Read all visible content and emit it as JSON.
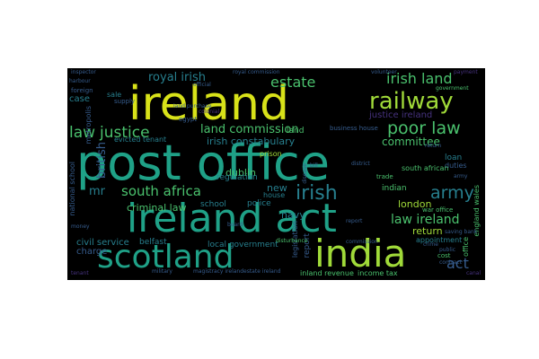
{
  "cloud": {
    "background": "#000000",
    "palette": {
      "yellow": "#d8e219",
      "lime": "#a0da39",
      "green": "#4ac16d",
      "teal": "#1fa187",
      "cyan": "#277f8e",
      "blue": "#365c8d",
      "indigo": "#46327e",
      "purple": "#440154"
    },
    "words": [
      "post office",
      "ireland act",
      "ireland",
      "scotland",
      "india",
      "railway",
      "irish",
      "army",
      "justice",
      "poor law",
      "law",
      "irish land",
      "royal irish",
      "estate",
      "south africa",
      "law ireland",
      "land commission",
      "act",
      "committee",
      "dublin",
      "mr",
      "british",
      "irish constabulary",
      "criminal law",
      "civil service",
      "navy",
      "return",
      "london",
      "indian",
      "new",
      "justice ireland",
      "local government",
      "regulation",
      "business house",
      "evicted tenant",
      "charge",
      "belfast",
      "case",
      "metropolis",
      "school",
      "police",
      "loan",
      "duties",
      "appointment",
      "report",
      "legislation",
      "inland revenue",
      "income tax",
      "magistracy ireland",
      "estate ireland",
      "military",
      "prison",
      "house",
      "south african",
      "national school",
      "england wales",
      "war office",
      "cost",
      "sale",
      "supply",
      "egypt",
      "disturbance",
      "disease",
      "trade",
      "commission",
      "office",
      "money",
      "return",
      "army",
      "land",
      "land purchase",
      "colonial",
      "foreign",
      "royal commission",
      "volunteer",
      "government",
      "harbour",
      "contract",
      "public",
      "official",
      "bill",
      "district",
      "inspector",
      "crime",
      "payment",
      "board",
      "report",
      "tenant",
      "canal",
      "saving bank"
    ]
  }
}
